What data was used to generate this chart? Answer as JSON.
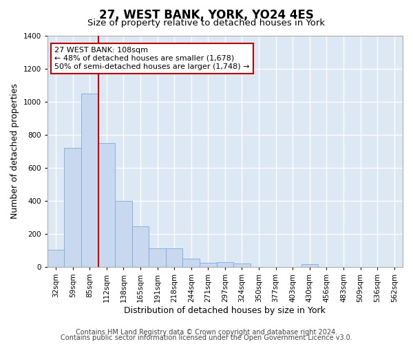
{
  "title": "27, WEST BANK, YORK, YO24 4ES",
  "subtitle": "Size of property relative to detached houses in York",
  "xlabel": "Distribution of detached houses by size in York",
  "ylabel": "Number of detached properties",
  "categories": [
    "32sqm",
    "59sqm",
    "85sqm",
    "112sqm",
    "138sqm",
    "165sqm",
    "191sqm",
    "218sqm",
    "244sqm",
    "271sqm",
    "297sqm",
    "324sqm",
    "350sqm",
    "377sqm",
    "403sqm",
    "430sqm",
    "456sqm",
    "483sqm",
    "509sqm",
    "536sqm",
    "562sqm"
  ],
  "values": [
    105,
    720,
    1050,
    750,
    400,
    245,
    110,
    110,
    48,
    25,
    30,
    20,
    0,
    0,
    0,
    15,
    0,
    0,
    0,
    0,
    0
  ],
  "bar_color": "#c8d8ee",
  "bar_edge_color": "#7aaadd",
  "vline_color": "#cc0000",
  "vline_position": 3,
  "annotation_text": "27 WEST BANK: 108sqm\n← 48% of detached houses are smaller (1,678)\n50% of semi-detached houses are larger (1,748) →",
  "annotation_box_facecolor": "#ffffff",
  "annotation_box_edgecolor": "#cc0000",
  "ylim": [
    0,
    1400
  ],
  "yticks": [
    0,
    200,
    400,
    600,
    800,
    1000,
    1200,
    1400
  ],
  "footer_line1": "Contains HM Land Registry data © Crown copyright and database right 2024.",
  "footer_line2": "Contains public sector information licensed under the Open Government Licence v3.0.",
  "fig_bg_color": "#ffffff",
  "plot_bg_color": "#dde8f5",
  "grid_color": "#ffffff",
  "title_fontsize": 12,
  "subtitle_fontsize": 9.5,
  "axis_label_fontsize": 9,
  "tick_fontsize": 7.5,
  "annotation_fontsize": 8,
  "footer_fontsize": 7
}
